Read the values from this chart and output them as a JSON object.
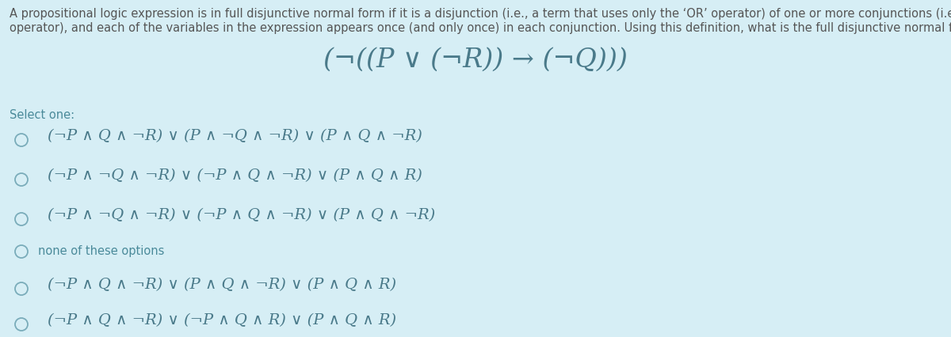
{
  "background_color": "#d6eef5",
  "text_color": "#4a7a8a",
  "title_line1": "A propositional logic expression is in full disjunctive normal form if it is a disjunction (i.e., a term that uses only the ‘OR’ operator) of one or more conjunctions (i.e., terms that uses only the ‘AND’",
  "title_line2": "operator), and each of the variables in the expression appears once (and only once) in each conjunction. Using this definition, what is the full disjunctive normal form of the expression below?",
  "main_expression": "(¬((P ∨ (¬R)) → (¬Q)))",
  "select_label": "Select one:",
  "options": [
    "(¬P ∧ Q ∧ ¬R) ∨ (P ∧ ¬Q ∧ ¬R) ∨ (P ∧ Q ∧ ¬R)",
    "(¬P ∧ ¬Q ∧ ¬R) ∨ (¬P ∧ Q ∧ ¬R) ∨ (P ∧ Q ∧ R)",
    "(¬P ∧ ¬Q ∧ ¬R) ∨ (¬P ∧ Q ∧ ¬R) ∨ (P ∧ Q ∧ ¬R)",
    "none of these options",
    "(¬P ∧ Q ∧ ¬R) ∨ (P ∧ Q ∧ ¬R) ∨ (P ∧ Q ∧ R)",
    "(¬P ∧ Q ∧ ¬R) ∨ (¬P ∧ Q ∧ R) ∨ (P ∧ Q ∧ R)"
  ],
  "title_fontsize": 10.5,
  "option_fontsize": 14,
  "main_expr_fontsize": 24,
  "select_fontsize": 10.5,
  "none_fontsize": 10.5,
  "circle_color": "#7aacba",
  "title_color": "#555555",
  "select_color": "#4a8a9a"
}
